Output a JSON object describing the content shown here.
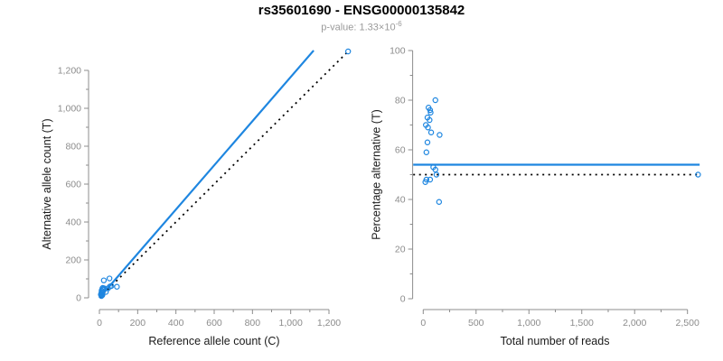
{
  "title": "rs35601690 - ENSG00000135842",
  "subtitle": {
    "prefix": "p-value: 1.33×10",
    "exponent": "-6",
    "full": "p-value: 1.33×10^-6"
  },
  "colors": {
    "accent_blue": "#1E86E0",
    "dotted_black": "#000000",
    "axis_gray": "#8C8C8C",
    "tick_label_gray": "#8C8C8C",
    "axis_title_color": "#1a1a1a",
    "subtitle_gray": "#9A9A9A"
  },
  "chart_data": [
    {
      "type": "scatter",
      "panel": "allele-counts",
      "xlabel": "Reference allele count (C)",
      "ylabel": "Alternative allele count (T)",
      "xlim": [
        0,
        1200
      ],
      "ylim": [
        0,
        1200
      ],
      "grid": false,
      "x_ticks": {
        "values": [
          0,
          200,
          400,
          600,
          800,
          1000,
          1200
        ],
        "labels": [
          "0",
          "200",
          "400",
          "600",
          "800",
          "1,000",
          "1,200"
        ],
        "minor": [
          100,
          300,
          500,
          700,
          900,
          1100
        ]
      },
      "y_ticks": {
        "values": [
          0,
          200,
          400,
          600,
          800,
          1000,
          1200
        ],
        "labels": [
          "0",
          "200",
          "400",
          "600",
          "800",
          "1,000",
          "1,200"
        ],
        "minor": [
          100,
          300,
          500,
          700,
          900,
          1100
        ]
      },
      "points": [
        [
          23.0,
          92.0
        ],
        [
          11.5,
          38.5
        ],
        [
          15.6,
          49.4
        ],
        [
          17.5,
          52.5
        ],
        [
          10.8,
          29.2
        ],
        [
          16.8,
          43.2
        ],
        [
          7.5,
          17.5
        ],
        [
          14.0,
          31.0
        ],
        [
          24.8,
          50.2
        ],
        [
          52.7,
          102.3
        ],
        [
          14.8,
          25.2
        ],
        [
          12.3,
          17.7
        ],
        [
          44.7,
          50.3
        ],
        [
          55.2,
          59.8
        ],
        [
          62.5,
          62.5
        ],
        [
          15.6,
          14.4
        ],
        [
          33.8,
          31.2
        ],
        [
          10.6,
          9.4
        ],
        [
          91.5,
          58.5
        ],
        [
          1300,
          1300
        ]
      ],
      "lines": [
        {
          "name": "fitted-line",
          "style": "solid",
          "color_key": "accent_blue",
          "x": [
            0,
            1120
          ],
          "y": [
            0,
            1305
          ]
        },
        {
          "name": "identity-line",
          "style": "dotted",
          "color_key": "dotted_black",
          "x": [
            0,
            1310
          ],
          "y": [
            0,
            1310
          ]
        }
      ]
    },
    {
      "type": "scatter",
      "panel": "percentage-vs-reads",
      "xlabel": "Total number of reads",
      "ylabel": "Percentage alternative (T)",
      "xlim": [
        0,
        2500
      ],
      "ylim": [
        0,
        100
      ],
      "grid": false,
      "x_ticks": {
        "values": [
          0,
          500,
          1000,
          1500,
          2000,
          2500
        ],
        "labels": [
          "0",
          "500",
          "1,000",
          "1,500",
          "2,000",
          "2,500"
        ],
        "minor": [
          250,
          750,
          1250,
          1750,
          2250
        ]
      },
      "y_ticks": {
        "values": [
          0,
          20,
          40,
          60,
          80,
          100
        ],
        "labels": [
          "0",
          "20",
          "40",
          "60",
          "80",
          "100"
        ],
        "minor": [
          10,
          30,
          50,
          70,
          90
        ]
      },
      "points": [
        [
          115,
          80
        ],
        [
          50,
          77
        ],
        [
          65,
          76
        ],
        [
          70,
          75
        ],
        [
          40,
          73
        ],
        [
          60,
          72
        ],
        [
          25,
          70
        ],
        [
          45,
          69
        ],
        [
          75,
          67
        ],
        [
          155,
          66
        ],
        [
          40,
          63
        ],
        [
          30,
          59
        ],
        [
          95,
          53
        ],
        [
          115,
          52
        ],
        [
          125,
          50
        ],
        [
          30,
          48
        ],
        [
          65,
          48
        ],
        [
          20,
          47
        ],
        [
          150,
          39
        ],
        [
          2600,
          50
        ]
      ],
      "lines": [
        {
          "name": "fitted-percentage-line",
          "style": "solid",
          "color_key": "accent_blue",
          "x": [
            -95,
            2615
          ],
          "y": [
            54,
            54
          ]
        },
        {
          "name": "null-percentage-line",
          "style": "dotted",
          "color_key": "dotted_black",
          "x": [
            -95,
            2615
          ],
          "y": [
            50,
            50
          ]
        }
      ]
    }
  ]
}
